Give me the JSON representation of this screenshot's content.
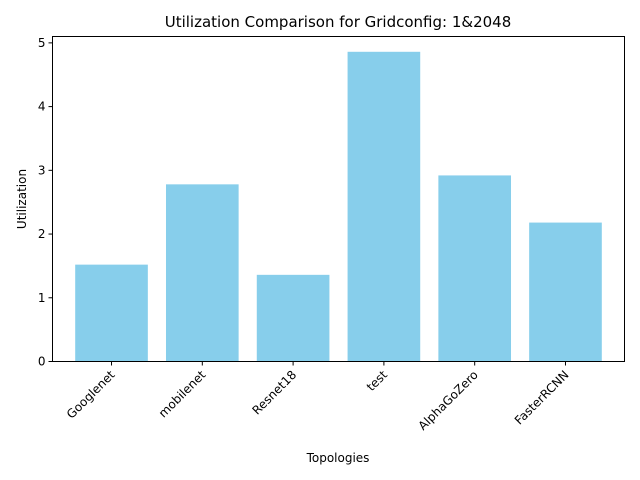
{
  "chart_data": {
    "type": "bar",
    "title": "Utilization Comparison for Gridconfig: 1&2048",
    "xlabel": "Topologies",
    "ylabel": "Utilization",
    "categories": [
      "Googlenet",
      "mobilenet",
      "Resnet18",
      "test",
      "AlphaGoZero",
      "FasterRCNN"
    ],
    "values": [
      1.52,
      2.78,
      1.36,
      4.86,
      2.92,
      2.18
    ],
    "ylim": [
      0,
      5.1
    ],
    "yticks": [
      0,
      1,
      2,
      3,
      4,
      5
    ],
    "bar_color": "#87ceeb",
    "grid": false,
    "legend": "none"
  }
}
